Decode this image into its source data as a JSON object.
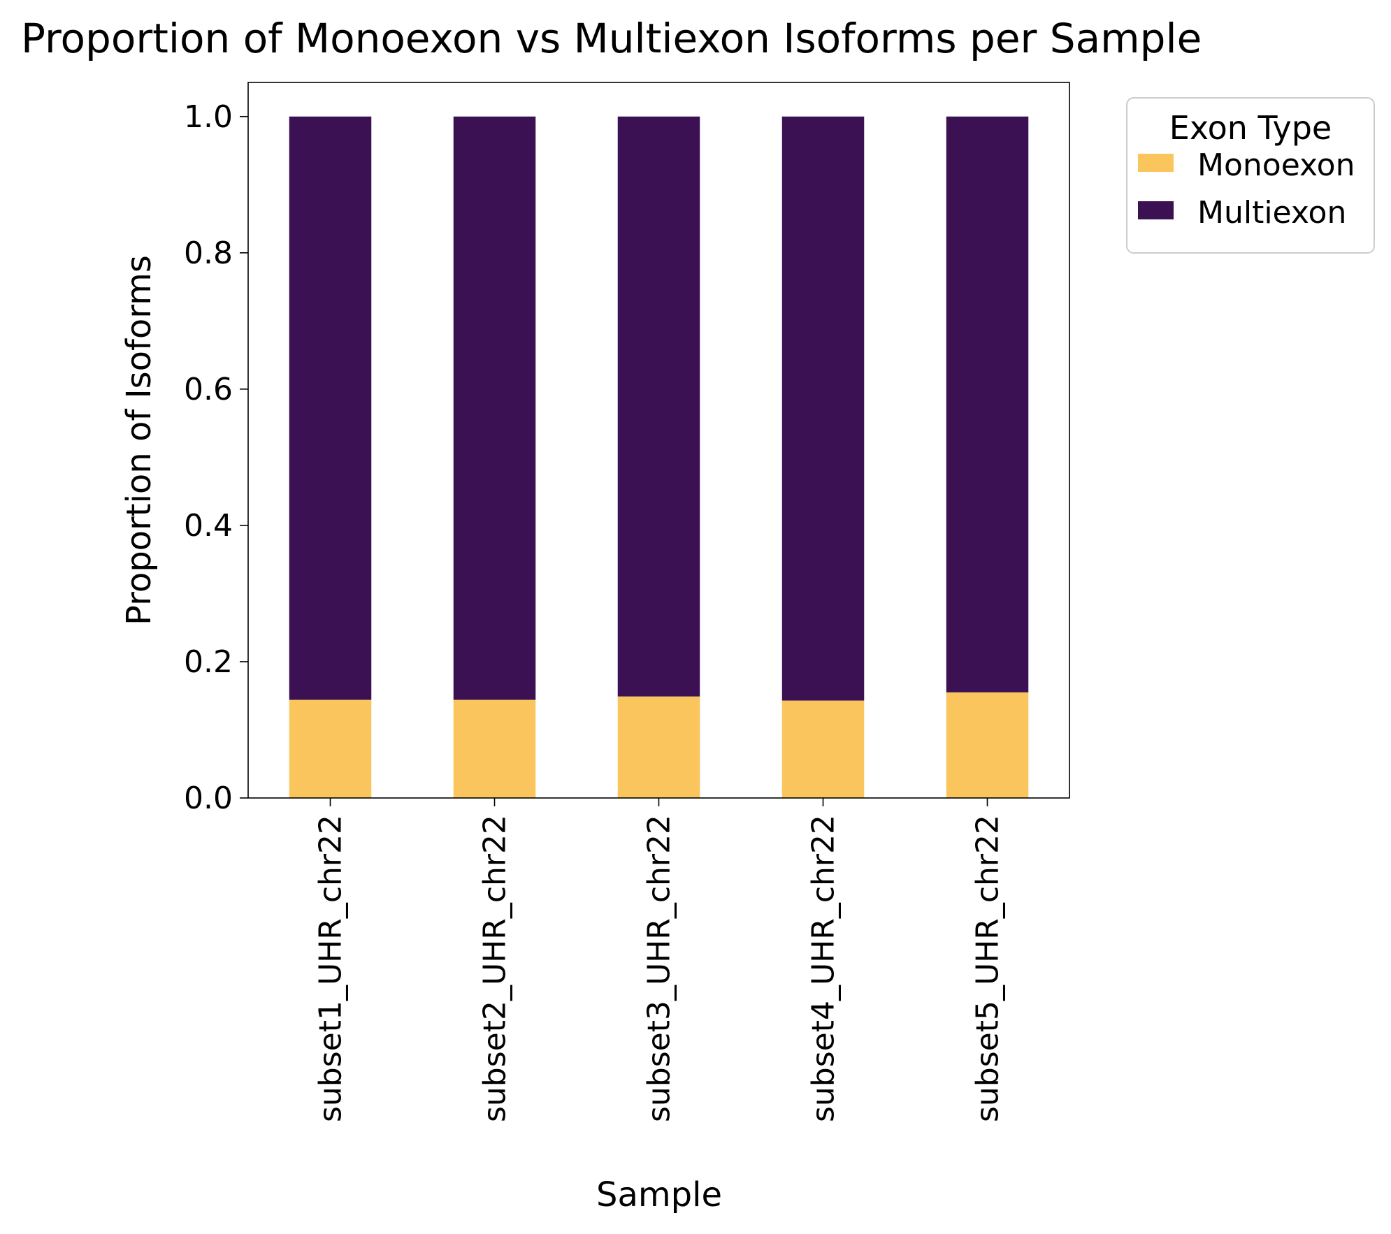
{
  "chart_data": {
    "type": "bar",
    "stacked": true,
    "title": "Proportion of Monoexon vs Multiexon Isoforms per Sample",
    "xlabel": "Sample",
    "ylabel": "Proportion of Isoforms",
    "categories": [
      "subset1_UHR_chr22",
      "subset2_UHR_chr22",
      "subset3_UHR_chr22",
      "subset4_UHR_chr22",
      "subset5_UHR_chr22"
    ],
    "series": [
      {
        "name": "Monoexon",
        "color": "#fac55d",
        "values": [
          0.144,
          0.144,
          0.149,
          0.143,
          0.155
        ]
      },
      {
        "name": "Multiexon",
        "color": "#3b1153",
        "values": [
          0.856,
          0.856,
          0.851,
          0.857,
          0.845
        ]
      }
    ],
    "ylim": [
      0,
      1.05
    ],
    "yticks": [
      0.0,
      0.2,
      0.4,
      0.6,
      0.8,
      1.0
    ],
    "ytick_labels": [
      "0.0",
      "0.2",
      "0.4",
      "0.6",
      "0.8",
      "1.0"
    ],
    "grid": false,
    "legend": {
      "title": "Exon Type",
      "placement": "outside-upper-right"
    }
  }
}
